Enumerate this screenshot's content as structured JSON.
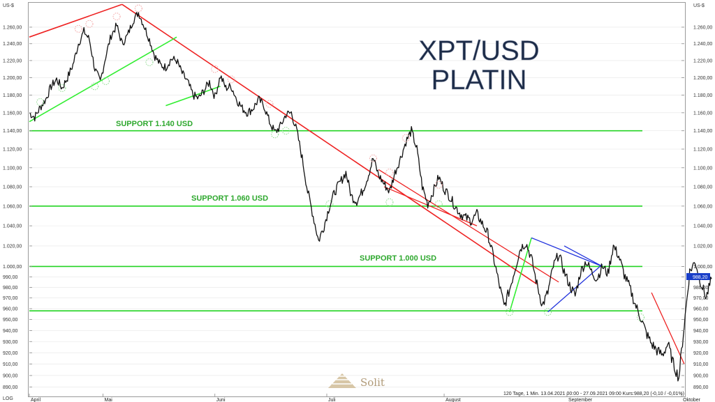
{
  "chart_data": {
    "type": "line",
    "title_line1": "XPT/USD",
    "title_line2": "PLATIN",
    "unit_left": "US-$",
    "unit_right": "US-$",
    "scale_label": "LOG",
    "y_scale": "log",
    "ylim": [
      882,
      1290
    ],
    "xlim": [
      0,
      120
    ],
    "y_ticks": [
      890,
      900,
      910,
      920,
      930,
      940,
      950,
      960,
      970,
      980,
      990,
      1000,
      1020,
      1040,
      1060,
      1080,
      1100,
      1120,
      1140,
      1160,
      1180,
      1200,
      1220,
      1240,
      1260
    ],
    "y_tick_labels": [
      "890,00",
      "900,00",
      "910,00",
      "920,00",
      "930,00",
      "940,00",
      "950,00",
      "960,00",
      "970,00",
      "980,00",
      "990,00",
      "1.000,00",
      "1.020,00",
      "1.040,00",
      "1.060,00",
      "1.080,00",
      "1.100,00",
      "1.120,00",
      "1.140,00",
      "1.160,00",
      "1.180,00",
      "1.200,00",
      "1.220,00",
      "1.240,00",
      "1.260,00"
    ],
    "x_ticks": [
      {
        "t": 0,
        "label": "April"
      },
      {
        "t": 13.5,
        "label": "Mai"
      },
      {
        "t": 34,
        "label": "Juni"
      },
      {
        "t": 54.5,
        "label": "Juli"
      },
      {
        "t": 76,
        "label": "August"
      },
      {
        "t": 98.5,
        "label": "September"
      },
      {
        "t": 119.5,
        "label": "Oktober"
      }
    ],
    "support_levels": [
      {
        "value": 1140,
        "label": "SUPPORT 1.140 USD"
      },
      {
        "value": 1060,
        "label": "SUPPORT 1.060 USD"
      },
      {
        "value": 1000,
        "label": "SUPPORT 1.000 USD"
      },
      {
        "value": 958,
        "label": ""
      }
    ],
    "series": [
      {
        "values": [
          [
            0,
            1160
          ],
          [
            1,
            1155
          ],
          [
            2,
            1166
          ],
          [
            3,
            1175
          ],
          [
            4,
            1190
          ],
          [
            5,
            1198
          ],
          [
            6,
            1188
          ],
          [
            7,
            1200
          ],
          [
            8,
            1215
          ],
          [
            9,
            1240
          ],
          [
            10,
            1255
          ],
          [
            11,
            1245
          ],
          [
            12,
            1210
          ],
          [
            13,
            1195
          ],
          [
            14,
            1225
          ],
          [
            15,
            1250
          ],
          [
            16,
            1262
          ],
          [
            17,
            1240
          ],
          [
            18,
            1250
          ],
          [
            19,
            1268
          ],
          [
            20,
            1278
          ],
          [
            21,
            1262
          ],
          [
            22,
            1245
          ],
          [
            23,
            1225
          ],
          [
            24,
            1215
          ],
          [
            25,
            1212
          ],
          [
            26,
            1222
          ],
          [
            27,
            1220
          ],
          [
            28,
            1205
          ],
          [
            29,
            1195
          ],
          [
            30,
            1180
          ],
          [
            31,
            1176
          ],
          [
            32,
            1185
          ],
          [
            33,
            1195
          ],
          [
            34,
            1178
          ],
          [
            35,
            1202
          ],
          [
            36,
            1188
          ],
          [
            37,
            1190
          ],
          [
            38,
            1175
          ],
          [
            39,
            1165
          ],
          [
            40,
            1160
          ],
          [
            41,
            1165
          ],
          [
            42,
            1175
          ],
          [
            43,
            1168
          ],
          [
            44,
            1150
          ],
          [
            45,
            1138
          ],
          [
            46,
            1145
          ],
          [
            47,
            1158
          ],
          [
            48,
            1160
          ],
          [
            49,
            1140
          ],
          [
            50,
            1110
          ],
          [
            51,
            1075
          ],
          [
            52,
            1050
          ],
          [
            53,
            1025
          ],
          [
            54,
            1040
          ],
          [
            55,
            1060
          ],
          [
            56,
            1075
          ],
          [
            57,
            1085
          ],
          [
            58,
            1095
          ],
          [
            59,
            1070
          ],
          [
            60,
            1065
          ],
          [
            61,
            1075
          ],
          [
            62,
            1090
          ],
          [
            63,
            1110
          ],
          [
            64,
            1092
          ],
          [
            65,
            1083
          ],
          [
            66,
            1075
          ],
          [
            67,
            1095
          ],
          [
            68,
            1110
          ],
          [
            69,
            1128
          ],
          [
            70,
            1140
          ],
          [
            71,
            1120
          ],
          [
            72,
            1080
          ],
          [
            73,
            1062
          ],
          [
            74,
            1075
          ],
          [
            75,
            1090
          ],
          [
            76,
            1078
          ],
          [
            77,
            1070
          ],
          [
            78,
            1060
          ],
          [
            79,
            1052
          ],
          [
            80,
            1048
          ],
          [
            81,
            1045
          ],
          [
            82,
            1052
          ],
          [
            83,
            1042
          ],
          [
            84,
            1032
          ],
          [
            85,
            1010
          ],
          [
            86,
            985
          ],
          [
            87,
            962
          ],
          [
            88,
            978
          ],
          [
            89,
            998
          ],
          [
            90,
            1018
          ],
          [
            91,
            1023
          ],
          [
            92,
            1008
          ],
          [
            93,
            983
          ],
          [
            94,
            963
          ],
          [
            95,
            975
          ],
          [
            96,
            1000
          ],
          [
            97,
            1012
          ],
          [
            98,
            995
          ],
          [
            99,
            982
          ],
          [
            100,
            972
          ],
          [
            101,
            995
          ],
          [
            102,
            1005
          ],
          [
            103,
            995
          ],
          [
            104,
            988
          ],
          [
            105,
            1000
          ],
          [
            106,
            993
          ],
          [
            107,
            1020
          ],
          [
            108,
            1010
          ],
          [
            109,
            992
          ],
          [
            110,
            980
          ],
          [
            111,
            964
          ],
          [
            112,
            952
          ],
          [
            113,
            938
          ],
          [
            114,
            928
          ],
          [
            115,
            922
          ],
          [
            116,
            918
          ],
          [
            117,
            928
          ],
          [
            118,
            910
          ],
          [
            119,
            898
          ],
          [
            120,
            945
          ],
          [
            121,
            995
          ],
          [
            122,
            1005
          ],
          [
            123,
            985
          ],
          [
            124,
            970
          ],
          [
            125,
            988
          ]
        ]
      }
    ],
    "last_value_label": "988,20",
    "info_text": "120 Tage, 1 Min. 13.04.2021 00:00 - 27.09.2021 09:00  Kurs:988,20  (-0,10 / -0,01%)"
  },
  "brand": {
    "logo_text": "Solit",
    "logo_icon": "pyramid-icon",
    "color": "#b09a78"
  },
  "colors": {
    "support_line": "#22d322",
    "trend_red": "#ee2222",
    "trend_green": "#33ee33",
    "trend_blue": "#2233dd",
    "price": "#111111",
    "last_badge": "#1a3fc8"
  }
}
